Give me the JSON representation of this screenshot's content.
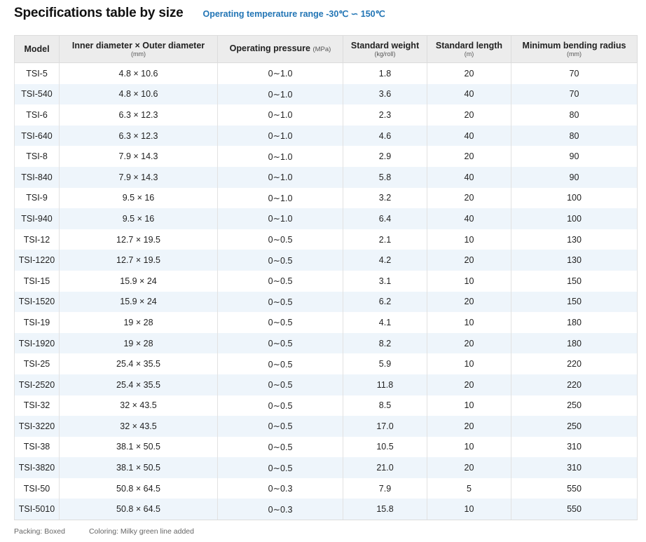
{
  "page": {
    "title": "Specifications table by size",
    "temperature_note": "Operating temperature range -30℃ ∽ 150℃"
  },
  "table": {
    "headers": [
      {
        "label": "Model",
        "unit": ""
      },
      {
        "label": "Inner diameter × Outer diameter",
        "unit": "(mm)"
      },
      {
        "label": "Operating pressure",
        "unit": "(MPa)"
      },
      {
        "label": "Standard weight",
        "unit": "(kg/roll)"
      },
      {
        "label": "Standard length",
        "unit": "(m)"
      },
      {
        "label": "Minimum bending radius",
        "unit": "(mm)"
      }
    ],
    "rows": [
      [
        "TSI-5",
        "4.8 × 10.6",
        "0∼1.0",
        "1.8",
        "20",
        "70"
      ],
      [
        "TSI-540",
        "4.8 × 10.6",
        "0∼1.0",
        "3.6",
        "40",
        "70"
      ],
      [
        "TSI-6",
        "6.3 × 12.3",
        "0∼1.0",
        "2.3",
        "20",
        "80"
      ],
      [
        "TSI-640",
        "6.3 × 12.3",
        "0∼1.0",
        "4.6",
        "40",
        "80"
      ],
      [
        "TSI-8",
        "7.9 × 14.3",
        "0∼1.0",
        "2.9",
        "20",
        "90"
      ],
      [
        "TSI-840",
        "7.9 × 14.3",
        "0∼1.0",
        "5.8",
        "40",
        "90"
      ],
      [
        "TSI-9",
        "9.5 × 16",
        "0∼1.0",
        "3.2",
        "20",
        "100"
      ],
      [
        "TSI-940",
        "9.5 × 16",
        "0∼1.0",
        "6.4",
        "40",
        "100"
      ],
      [
        "TSI-12",
        "12.7 × 19.5",
        "0∼0.5",
        "2.1",
        "10",
        "130"
      ],
      [
        "TSI-1220",
        "12.7 × 19.5",
        "0∼0.5",
        "4.2",
        "20",
        "130"
      ],
      [
        "TSI-15",
        "15.9 × 24",
        "0∼0.5",
        "3.1",
        "10",
        "150"
      ],
      [
        "TSI-1520",
        "15.9 × 24",
        "0∼0.5",
        "6.2",
        "20",
        "150"
      ],
      [
        "TSI-19",
        "19 × 28",
        "0∼0.5",
        "4.1",
        "10",
        "180"
      ],
      [
        "TSI-1920",
        "19 × 28",
        "0∼0.5",
        "8.2",
        "20",
        "180"
      ],
      [
        "TSI-25",
        "25.4 × 35.5",
        "0∼0.5",
        "5.9",
        "10",
        "220"
      ],
      [
        "TSI-2520",
        "25.4 × 35.5",
        "0∼0.5",
        "11.8",
        "20",
        "220"
      ],
      [
        "TSI-32",
        "32 × 43.5",
        "0∼0.5",
        "8.5",
        "10",
        "250"
      ],
      [
        "TSI-3220",
        "32 × 43.5",
        "0∼0.5",
        "17.0",
        "20",
        "250"
      ],
      [
        "TSI-38",
        "38.1 × 50.5",
        "0∼0.5",
        "10.5",
        "10",
        "310"
      ],
      [
        "TSI-3820",
        "38.1 × 50.5",
        "0∼0.5",
        "21.0",
        "20",
        "310"
      ],
      [
        "TSI-50",
        "50.8 × 64.5",
        "0∼0.3",
        "7.9",
        "5",
        "550"
      ],
      [
        "TSI-5010",
        "50.8 × 64.5",
        "0∼0.3",
        "15.8",
        "10",
        "550"
      ]
    ]
  },
  "footer": {
    "packing": "Packing: Boxed",
    "coloring": "Coloring: Milky green line added"
  },
  "colors": {
    "accent": "#2275b5",
    "header_bg": "#ececec",
    "stripe_bg": "#eef5fb"
  }
}
